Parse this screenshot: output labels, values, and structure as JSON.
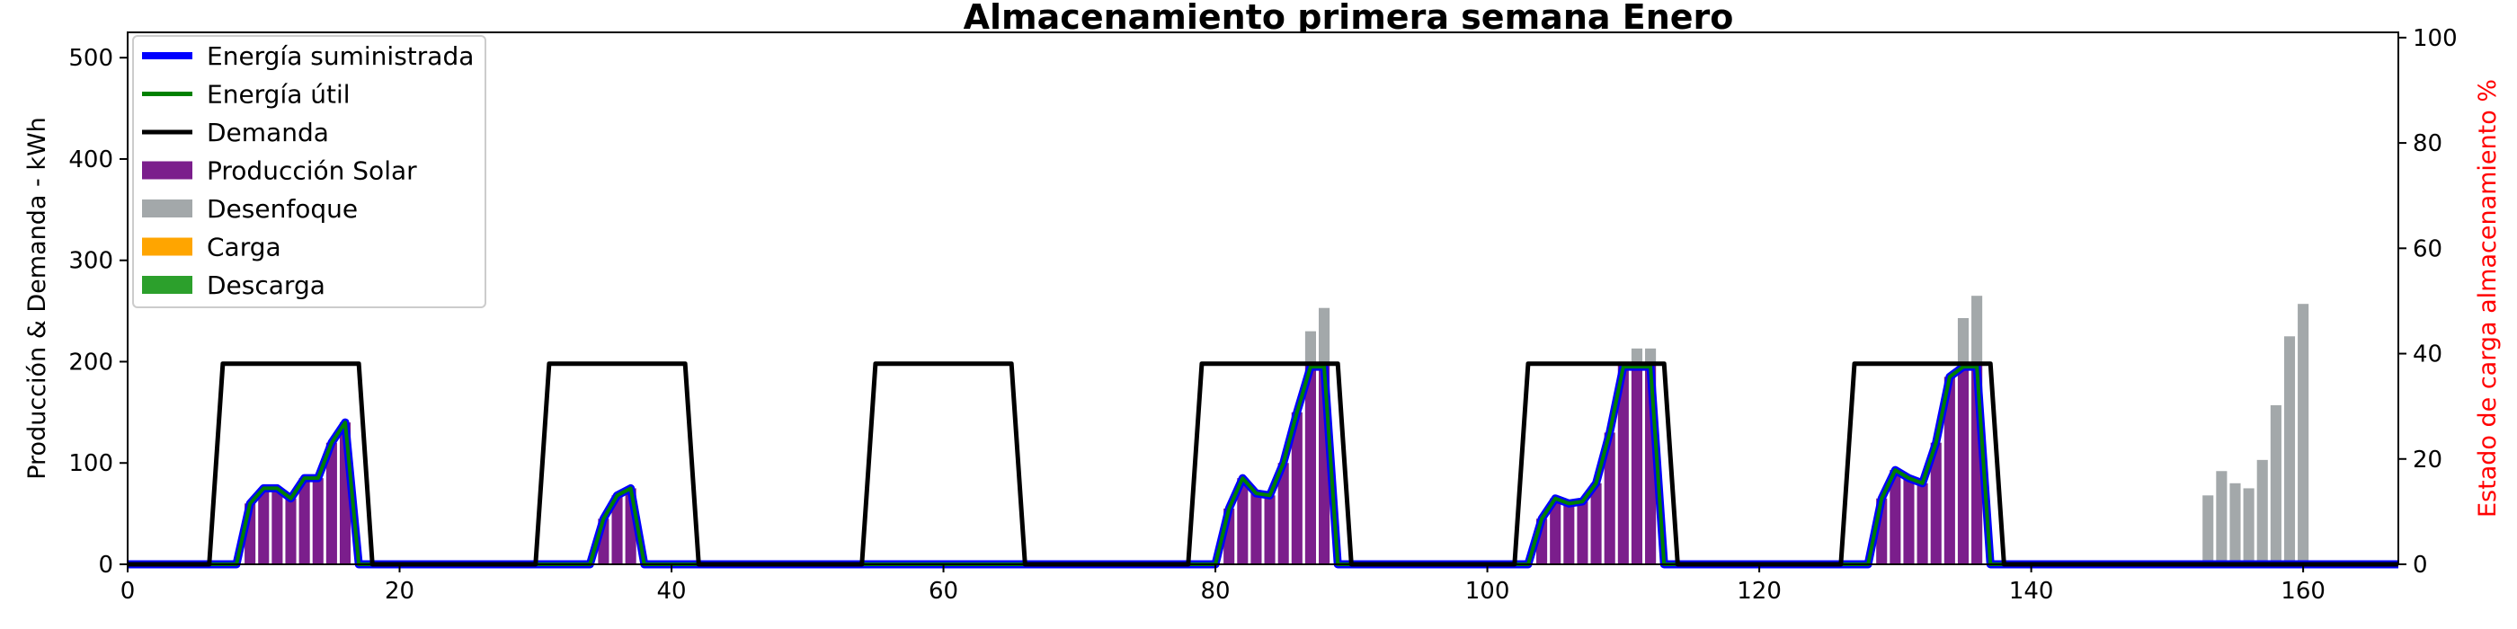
{
  "chart_data": {
    "type": "bar",
    "title": "Almacenamiento primera semana Enero",
    "xlabel": "",
    "ylabel": "Producción & Demanda - kWh",
    "y2label": "Estado de carga almacenamiento %",
    "xlim": [
      0,
      167
    ],
    "ylim": [
      0,
      525
    ],
    "y2lim": [
      0,
      101
    ],
    "xticks": [
      0,
      20,
      40,
      60,
      80,
      100,
      120,
      140,
      160
    ],
    "yticks": [
      0,
      100,
      200,
      300,
      400,
      500
    ],
    "y2ticks": [
      0,
      20,
      40,
      60,
      80,
      100
    ],
    "legend_position": "upper-left",
    "colors": {
      "suministrada": "#0000ff",
      "util": "#008000",
      "demanda": "#000000",
      "solar": "#7b1e8c",
      "desenfoque": "#a3a8aa",
      "carga": "#ffa500",
      "descarga": "#2ca02c",
      "y2axis": "#ff0000"
    },
    "legend": [
      {
        "label": "Energía suministrada",
        "kind": "line",
        "color": "#0000ff"
      },
      {
        "label": "Energía útil",
        "kind": "line",
        "color": "#008000"
      },
      {
        "label": "Demanda",
        "kind": "line",
        "color": "#000000"
      },
      {
        "label": "Producción Solar",
        "kind": "patch",
        "color": "#7b1e8c"
      },
      {
        "label": "Desenfoque",
        "kind": "patch",
        "color": "#a3a8aa"
      },
      {
        "label": "Carga",
        "kind": "patch",
        "color": "#ffa500"
      },
      {
        "label": "Descarga",
        "kind": "patch",
        "color": "#2ca02c"
      }
    ],
    "series": [
      {
        "name": "Producción Solar",
        "type": "bar",
        "x": [
          9,
          10,
          11,
          12,
          13,
          14,
          15,
          16,
          35,
          36,
          37,
          81,
          82,
          83,
          84,
          85,
          86,
          87,
          88,
          104,
          105,
          106,
          107,
          108,
          109,
          110,
          111,
          112,
          129,
          130,
          131,
          132,
          133,
          134,
          135,
          136
        ],
        "values": [
          60,
          75,
          75,
          65,
          85,
          85,
          120,
          140,
          45,
          68,
          75,
          55,
          85,
          70,
          68,
          100,
          150,
          200,
          200,
          45,
          65,
          60,
          62,
          80,
          130,
          200,
          200,
          200,
          65,
          93,
          85,
          80,
          120,
          185,
          200,
          200
        ]
      },
      {
        "name": "Desenfoque",
        "type": "bar",
        "x": [
          87,
          88,
          111,
          112,
          135,
          136,
          153,
          154,
          155,
          156,
          157,
          158,
          159,
          160
        ],
        "values": [
          230,
          253,
          213,
          213,
          243,
          265,
          68,
          92,
          80,
          75,
          103,
          157,
          225,
          257
        ]
      },
      {
        "name": "Demanda",
        "type": "line",
        "x": [
          0,
          6,
          7,
          17,
          18,
          30,
          31,
          41,
          42,
          54,
          55,
          65,
          66,
          78,
          79,
          89,
          90,
          102,
          103,
          113,
          114,
          126,
          127,
          137,
          138,
          167
        ],
        "values": [
          0,
          0,
          198,
          198,
          0,
          0,
          198,
          198,
          0,
          0,
          198,
          198,
          0,
          0,
          198,
          198,
          0,
          0,
          198,
          198,
          0,
          0,
          198,
          198,
          0,
          0
        ]
      },
      {
        "name": "Energía suministrada",
        "type": "line",
        "x": [
          0,
          8,
          9,
          10,
          11,
          12,
          13,
          14,
          15,
          16,
          17,
          34,
          35,
          36,
          37,
          38,
          80,
          81,
          82,
          83,
          84,
          85,
          86,
          87,
          88,
          89,
          103,
          104,
          105,
          106,
          107,
          108,
          109,
          110,
          111,
          112,
          113,
          128,
          129,
          130,
          131,
          132,
          133,
          134,
          135,
          136,
          137,
          167
        ],
        "values": [
          0,
          0,
          60,
          75,
          75,
          65,
          85,
          85,
          120,
          140,
          0,
          0,
          45,
          68,
          75,
          0,
          0,
          55,
          85,
          70,
          68,
          100,
          150,
          195,
          195,
          0,
          0,
          45,
          65,
          60,
          62,
          80,
          130,
          195,
          195,
          195,
          0,
          0,
          65,
          93,
          85,
          80,
          120,
          185,
          195,
          195,
          0,
          0
        ]
      },
      {
        "name": "Energía útil",
        "type": "line",
        "x": [
          0,
          8,
          9,
          10,
          11,
          12,
          13,
          14,
          15,
          16,
          17,
          34,
          35,
          36,
          37,
          38,
          80,
          81,
          82,
          83,
          84,
          85,
          86,
          87,
          88,
          89,
          103,
          104,
          105,
          106,
          107,
          108,
          109,
          110,
          111,
          112,
          113,
          128,
          129,
          130,
          131,
          132,
          133,
          134,
          135,
          136,
          137,
          167
        ],
        "values": [
          0,
          0,
          60,
          75,
          75,
          65,
          85,
          85,
          120,
          140,
          0,
          0,
          45,
          68,
          75,
          0,
          0,
          55,
          85,
          70,
          68,
          100,
          150,
          195,
          195,
          0,
          0,
          45,
          65,
          60,
          62,
          80,
          130,
          195,
          195,
          195,
          0,
          0,
          65,
          93,
          85,
          80,
          120,
          185,
          195,
          195,
          0,
          0
        ]
      }
    ]
  }
}
